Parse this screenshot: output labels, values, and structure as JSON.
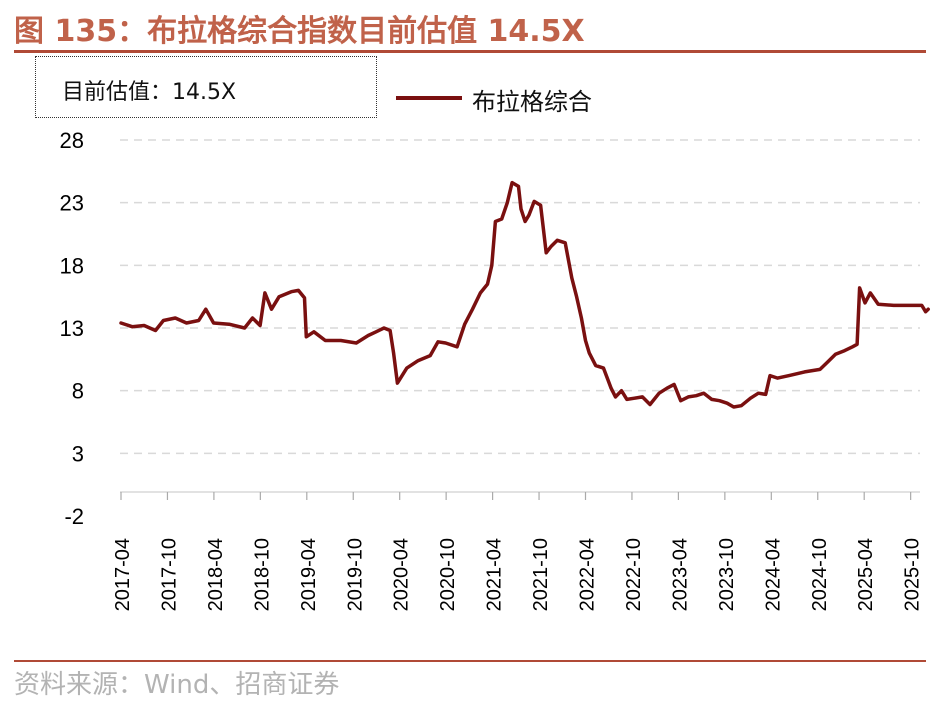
{
  "title": "图 135：布拉格综合指数目前估值 14.5X",
  "annotation": "目前估值：14.5X",
  "source": "资料来源：Wind、招商证券",
  "colors": {
    "series": "#7a1010",
    "title": "#c0624a",
    "grid": "#d9d9d9"
  },
  "chart_data": {
    "type": "line",
    "title": "图 135：布拉格综合指数目前估值 14.5X",
    "xlabel": "",
    "ylabel": "",
    "ylim": [
      -2,
      28
    ],
    "yticks": [
      "28",
      "23",
      "18",
      "13",
      "8",
      "3",
      "-2"
    ],
    "xticks": [
      "2017-04",
      "2017-10",
      "2018-04",
      "2018-10",
      "2019-04",
      "2019-10",
      "2020-04",
      "2020-10",
      "2021-04",
      "2021-10",
      "2022-04",
      "2022-10",
      "2023-04",
      "2023-10",
      "2024-04",
      "2024-10",
      "2025-04",
      "2025-10"
    ],
    "grid": "horizontal dashed",
    "legend_position": "top",
    "series": [
      {
        "name": "布拉格综合",
        "points": [
          [
            "2017-04-01",
            13.4
          ],
          [
            "2017-05-15",
            13.1
          ],
          [
            "2017-07-01",
            13.2
          ],
          [
            "2017-08-15",
            12.8
          ],
          [
            "2017-09-15",
            13.6
          ],
          [
            "2017-11-01",
            13.8
          ],
          [
            "2017-12-15",
            13.4
          ],
          [
            "2018-02-01",
            13.6
          ],
          [
            "2018-03-01",
            14.5
          ],
          [
            "2018-04-01",
            13.4
          ],
          [
            "2018-06-01",
            13.3
          ],
          [
            "2018-08-01",
            13.0
          ],
          [
            "2018-09-01",
            13.8
          ],
          [
            "2018-10-01",
            13.2
          ],
          [
            "2018-10-20",
            15.8
          ],
          [
            "2018-11-15",
            14.5
          ],
          [
            "2018-12-15",
            15.5
          ],
          [
            "2019-02-01",
            15.9
          ],
          [
            "2019-03-01",
            16.0
          ],
          [
            "2019-03-25",
            15.4
          ],
          [
            "2019-04-01",
            12.3
          ],
          [
            "2019-05-01",
            12.7
          ],
          [
            "2019-06-15",
            12.0
          ],
          [
            "2019-08-15",
            12.0
          ],
          [
            "2019-10-15",
            11.8
          ],
          [
            "2019-12-01",
            12.4
          ],
          [
            "2020-01-01",
            12.7
          ],
          [
            "2020-02-01",
            13.0
          ],
          [
            "2020-02-25",
            12.8
          ],
          [
            "2020-03-10",
            11.0
          ],
          [
            "2020-03-25",
            8.6
          ],
          [
            "2020-05-01",
            9.8
          ],
          [
            "2020-06-15",
            10.4
          ],
          [
            "2020-08-01",
            10.8
          ],
          [
            "2020-09-01",
            11.9
          ],
          [
            "2020-10-01",
            11.8
          ],
          [
            "2020-11-15",
            11.5
          ],
          [
            "2020-12-15",
            13.3
          ],
          [
            "2021-01-15",
            14.5
          ],
          [
            "2021-02-15",
            15.8
          ],
          [
            "2021-03-15",
            16.5
          ],
          [
            "2021-04-01",
            18.0
          ],
          [
            "2021-04-15",
            21.5
          ],
          [
            "2021-05-10",
            21.7
          ],
          [
            "2021-06-01",
            23.0
          ],
          [
            "2021-06-20",
            24.6
          ],
          [
            "2021-07-15",
            24.3
          ],
          [
            "2021-07-25",
            22.5
          ],
          [
            "2021-08-10",
            21.5
          ],
          [
            "2021-08-25",
            22.0
          ],
          [
            "2021-09-15",
            23.1
          ],
          [
            "2021-10-10",
            22.8
          ],
          [
            "2021-11-01",
            19.0
          ],
          [
            "2021-11-20",
            19.5
          ],
          [
            "2021-12-15",
            20.0
          ],
          [
            "2022-01-15",
            19.8
          ],
          [
            "2022-02-10",
            17.0
          ],
          [
            "2022-03-01",
            15.5
          ],
          [
            "2022-03-20",
            13.8
          ],
          [
            "2022-04-05",
            12.0
          ],
          [
            "2022-04-20",
            11.0
          ],
          [
            "2022-05-15",
            10.0
          ],
          [
            "2022-06-15",
            9.8
          ],
          [
            "2022-07-15",
            8.2
          ],
          [
            "2022-08-01",
            7.5
          ],
          [
            "2022-08-25",
            8.0
          ],
          [
            "2022-09-15",
            7.3
          ],
          [
            "2022-10-15",
            7.4
          ],
          [
            "2022-11-15",
            7.5
          ],
          [
            "2022-12-15",
            6.9
          ],
          [
            "2023-01-20",
            7.8
          ],
          [
            "2023-02-20",
            8.2
          ],
          [
            "2023-03-20",
            8.5
          ],
          [
            "2023-04-15",
            7.2
          ],
          [
            "2023-05-15",
            7.5
          ],
          [
            "2023-06-15",
            7.6
          ],
          [
            "2023-07-15",
            7.8
          ],
          [
            "2023-08-15",
            7.3
          ],
          [
            "2023-09-15",
            7.2
          ],
          [
            "2023-10-15",
            7.0
          ],
          [
            "2023-11-10",
            6.7
          ],
          [
            "2023-12-10",
            6.8
          ],
          [
            "2024-01-15",
            7.4
          ],
          [
            "2024-02-15",
            7.8
          ],
          [
            "2024-03-15",
            7.7
          ],
          [
            "2024-04-01",
            9.2
          ],
          [
            "2024-05-01",
            9.0
          ],
          [
            "2024-06-15",
            9.2
          ],
          [
            "2024-08-15",
            9.5
          ],
          [
            "2024-10-15",
            9.7
          ],
          [
            "2024-11-15",
            10.3
          ],
          [
            "2024-12-15",
            10.9
          ],
          [
            "2025-01-20",
            11.2
          ],
          [
            "2025-02-20",
            11.5
          ],
          [
            "2025-03-10",
            11.7
          ],
          [
            "2025-03-20",
            16.2
          ],
          [
            "2025-04-10",
            15.0
          ],
          [
            "2025-05-01",
            15.8
          ],
          [
            "2025-06-01",
            14.9
          ],
          [
            "2025-08-01",
            14.8
          ],
          [
            "2025-10-01",
            14.8
          ],
          [
            "2025-11-20",
            14.8
          ],
          [
            "2025-12-05",
            14.3
          ],
          [
            "2025-12-15",
            14.5
          ]
        ]
      }
    ]
  }
}
